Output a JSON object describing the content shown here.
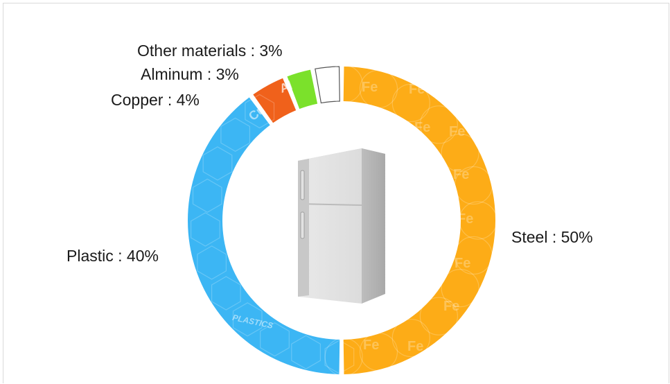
{
  "chart_data": {
    "type": "pie",
    "categories": [
      "Steel",
      "Plastic",
      "Copper",
      "Alminum",
      "Other materials"
    ],
    "values": [
      50,
      40,
      4,
      3,
      3
    ],
    "labels": [
      "Steel : 50%",
      "Plastic : 40%",
      "Copper : 4%",
      "Alminum : 3%",
      "Other materials : 3%"
    ],
    "colors": [
      "#fdac17",
      "#3cb6f4",
      "#f0611b",
      "#7be12b",
      "#ffffff"
    ],
    "segment_text": {
      "steel": "Fe",
      "plastic": "PLASTICS",
      "copper": "Cu",
      "aluminum": "Al"
    },
    "center_icon": "refrigerator-icon"
  }
}
